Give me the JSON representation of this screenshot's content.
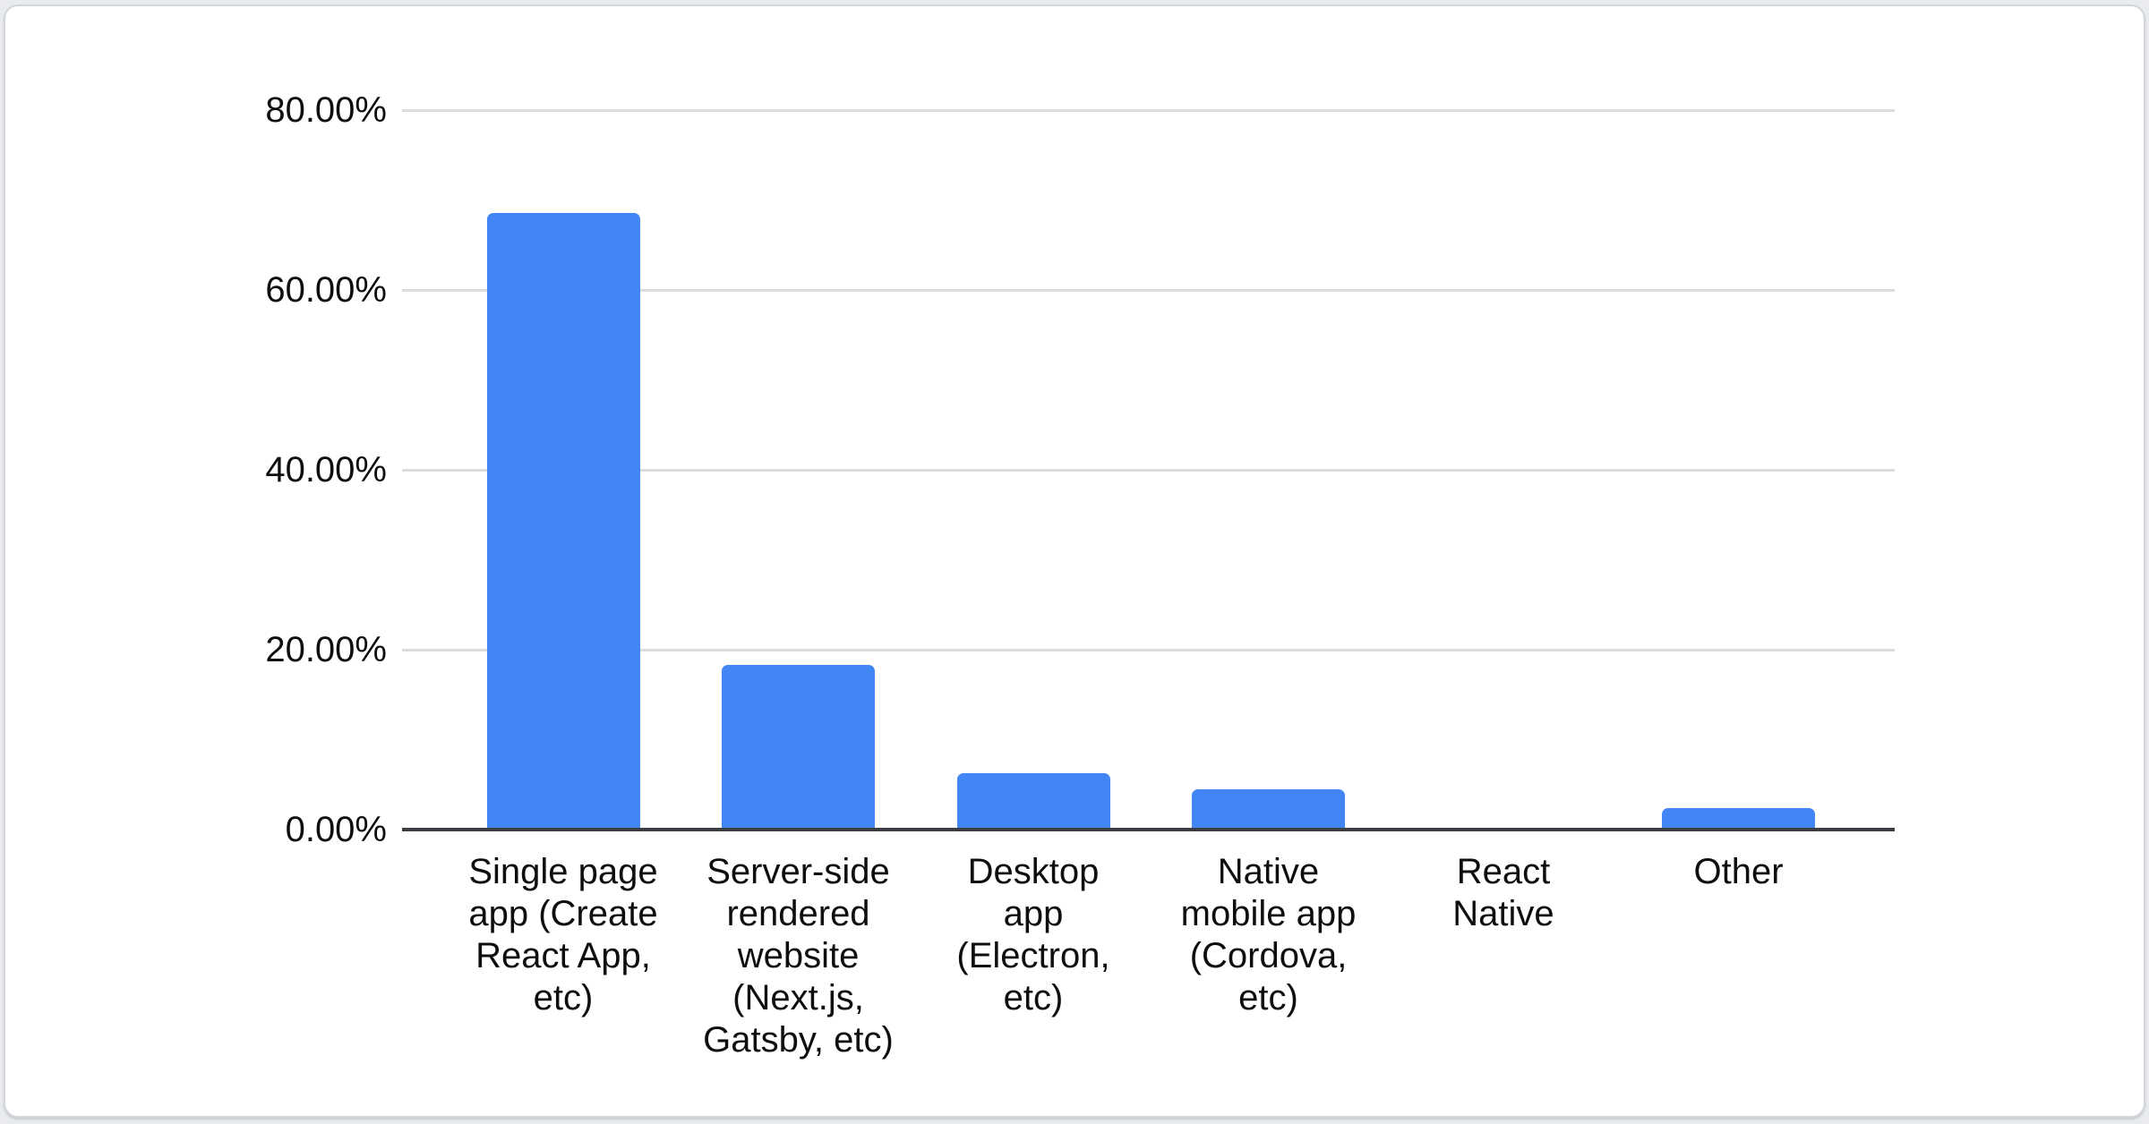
{
  "page": {
    "background_color": "#e9ebee"
  },
  "card": {
    "background_color": "#ffffff",
    "border_color": "#d3d6da"
  },
  "chart_data": {
    "type": "bar",
    "title": "",
    "xlabel": "",
    "ylabel": "",
    "categories": [
      "Single page\napp (Create\nReact App,\netc)",
      "Server-side\nrendered\nwebsite\n(Next.js,\nGatsby, etc)",
      "Desktop\napp\n(Electron,\netc)",
      "Native\nmobile app\n(Cordova,\netc)",
      "React\nNative",
      "Other"
    ],
    "values": [
      68.4,
      18.1,
      6.1,
      4.3,
      0,
      2.2
    ],
    "value_unit": "%",
    "ylim": [
      0,
      80
    ],
    "y_tick_values": [
      80,
      60,
      40,
      20,
      0
    ],
    "y_tick_labels": [
      "80.00%",
      "60.00%",
      "40.00%",
      "20.00%",
      "0.00%"
    ],
    "grid": true,
    "legend": "none",
    "bar_color": "#4285f4",
    "gridline_color": "#dadce0",
    "axis_line_color": "#3a3d41",
    "label_color": "#0e0e0e"
  }
}
